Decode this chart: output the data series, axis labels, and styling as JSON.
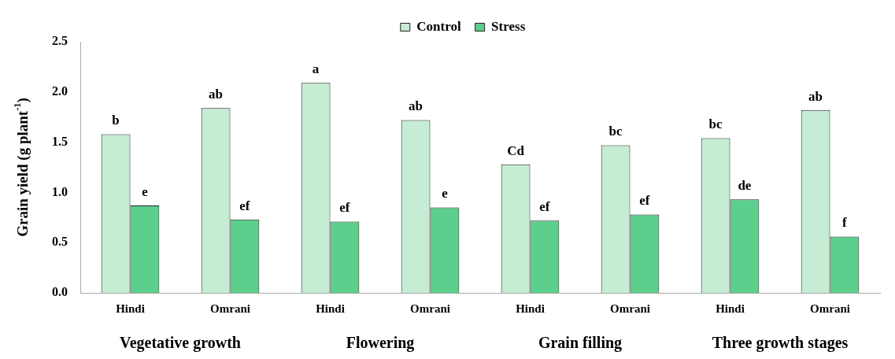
{
  "chart_data": {
    "type": "bar",
    "ylabel": "Grain yield (g plant$^{-1}$)",
    "categories": [
      "Hindi",
      "Omrani",
      "Hindi",
      "Omrani",
      "Hindi",
      "Omrani",
      "Hindi",
      "Omrani"
    ],
    "series": [
      {
        "name": "Control",
        "color": "#c6ecd3",
        "values": [
          1.58,
          1.84,
          2.09,
          1.72,
          1.28,
          1.47,
          1.54,
          1.82
        ],
        "value_labels": [
          "b",
          "ab",
          "a",
          "ab",
          "Cd",
          "bc",
          "bc",
          "ab"
        ]
      },
      {
        "name": "Stress",
        "color": "#5ccf8c",
        "values": [
          0.87,
          0.73,
          0.71,
          0.85,
          0.72,
          0.78,
          0.93,
          0.56
        ],
        "value_labels": [
          "e",
          "ef",
          "ef",
          "e",
          "ef",
          "ef",
          "de",
          "f"
        ]
      }
    ],
    "annotations": [
      "Vegetative growth",
      "Flowering",
      "Grain filling",
      "Three growth stages"
    ],
    "ylim": [
      0,
      2.5
    ],
    "yticks": [
      {
        "value": 0,
        "label": "0.0"
      },
      0.5,
      {
        "value": 1,
        "label": "1.0"
      },
      1.5,
      {
        "value": 2,
        "label": "2.0"
      },
      2.5
    ],
    "grid": false,
    "legend": "top"
  }
}
